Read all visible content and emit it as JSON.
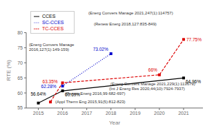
{
  "chart_data": {
    "type": "line",
    "xlabel": "Year",
    "ylabel": "RTE (%)",
    "xlim": [
      2014.5,
      2021.8
    ],
    "ylim": [
      55,
      80
    ],
    "xticks": [
      2015,
      2016,
      2017,
      2018,
      2019,
      2020,
      2021
    ],
    "yticks": [
      55,
      60,
      65,
      70,
      75,
      80
    ],
    "grid": false,
    "legend": "upper left",
    "data_labels": true,
    "series": [
      {
        "name": "CCES",
        "color": "#000000",
        "line_style": "solid",
        "marker": "square",
        "x": [
          2015,
          2016,
          2021
        ],
        "values": [
          56.64,
          60.69,
          64.96
        ],
        "value_labels": [
          "56.64%",
          "60.69%",
          "64.96%"
        ]
      },
      {
        "name": "TC-CCES",
        "color": "#DD0000",
        "line_style": "dashed",
        "marker": "square",
        "x": [
          2015.5,
          2016,
          2020,
          2021
        ],
        "values": [
          57.0,
          63.35,
          66.0,
          77.75
        ],
        "value_labels": [
          null,
          "63.35%",
          "66%",
          "77.75%"
        ]
      },
      {
        "name": "SC-CCES",
        "color": "#0000CC",
        "line_style": "dotted",
        "marker": "square",
        "x": [
          2016,
          2018
        ],
        "values": [
          62.28,
          73.02
        ],
        "value_labels": [
          "62.28%",
          "73.02%"
        ]
      }
    ],
    "annotations": [
      "(Energ Convers Manage\n2016,127(1):149-159)",
      "(Appl Therm Eng 2015,91(5):812-823)",
      "(Renew Energ 2016,99:682-697)",
      "(Renew Energ 2018,127:835-849)",
      "(Int J Energ Res 2020,44(10):7924-7937)",
      "(Energ Convers Manage 2021,229(1):113679)",
      "(Energ Convers Manage 2021,247(1):114757)"
    ]
  }
}
